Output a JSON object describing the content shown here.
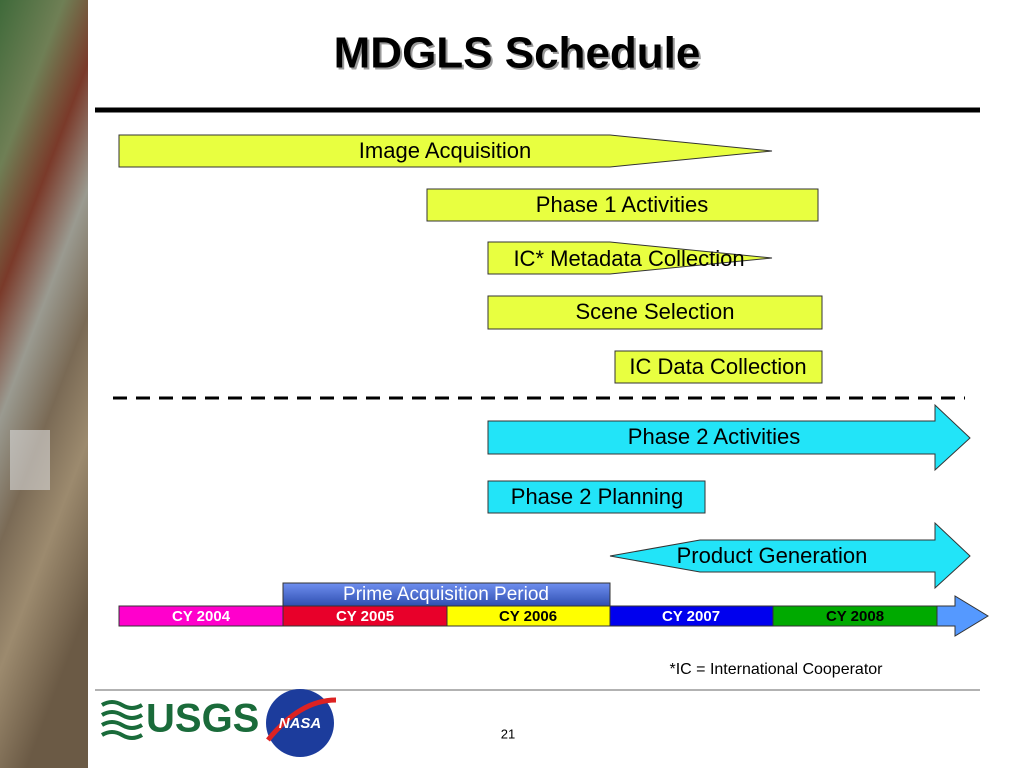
{
  "header": {
    "title": "MDGLS Schedule"
  },
  "activities": [
    {
      "label": "Image Acquisition"
    },
    {
      "label": "Phase 1 Activities"
    },
    {
      "label": "IC* Metadata Collection"
    },
    {
      "label": "Scene Selection"
    },
    {
      "label": "IC Data Collection"
    },
    {
      "label": "Phase 2 Activities"
    },
    {
      "label": "Phase 2 Planning"
    },
    {
      "label": "Product Generation"
    }
  ],
  "timeline": {
    "highlight": "Prime Acquisition Period",
    "years": [
      "CY 2004",
      "CY 2005",
      "CY 2006",
      "CY 2007",
      "CY 2008"
    ]
  },
  "footnote": "*IC = International Cooperator",
  "footer": {
    "usgs": "USGS",
    "nasa": "NASA",
    "page_number": "21"
  }
}
